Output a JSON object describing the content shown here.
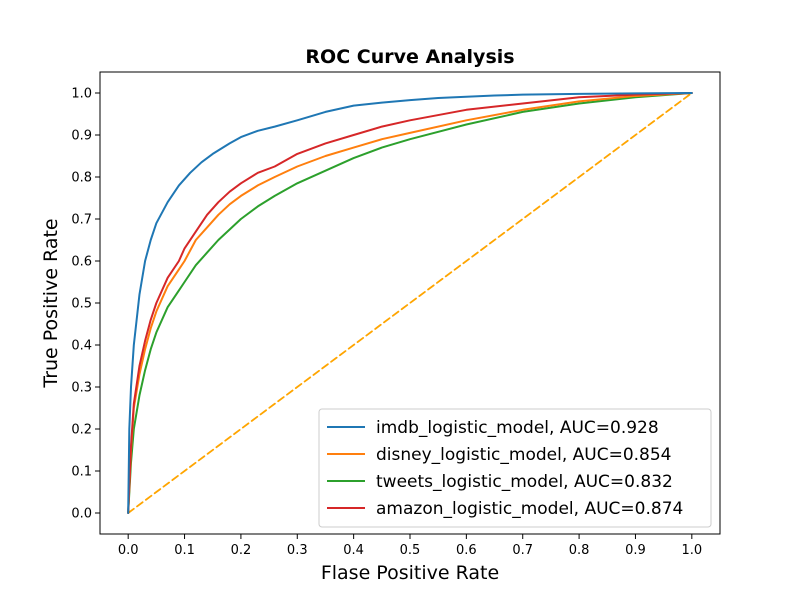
{
  "chart_data": {
    "type": "line",
    "title": "ROC Curve Analysis",
    "xlabel": "Flase Positive Rate",
    "ylabel": "True Positive Rate",
    "xlim": [
      -0.05,
      1.05
    ],
    "ylim": [
      -0.05,
      1.05
    ],
    "xticks": [
      "0.0",
      "0.1",
      "0.2",
      "0.3",
      "0.4",
      "0.5",
      "0.6",
      "0.7",
      "0.8",
      "0.9",
      "1.0"
    ],
    "yticks": [
      "0.0",
      "0.1",
      "0.2",
      "0.3",
      "0.4",
      "0.5",
      "0.6",
      "0.7",
      "0.8",
      "0.9",
      "1.0"
    ],
    "grid": false,
    "legend_position": "lower-right",
    "series": [
      {
        "name": "imdb_logistic_model, AUC=0.928",
        "color": "#1f77b4",
        "x": [
          0,
          0.002,
          0.005,
          0.01,
          0.015,
          0.02,
          0.03,
          0.04,
          0.05,
          0.07,
          0.09,
          0.11,
          0.13,
          0.15,
          0.18,
          0.2,
          0.23,
          0.26,
          0.3,
          0.35,
          0.4,
          0.45,
          0.5,
          0.55,
          0.6,
          0.65,
          0.7,
          0.8,
          0.9,
          1.0
        ],
        "y": [
          0,
          0.2,
          0.3,
          0.4,
          0.46,
          0.52,
          0.6,
          0.65,
          0.69,
          0.74,
          0.78,
          0.81,
          0.835,
          0.855,
          0.88,
          0.895,
          0.91,
          0.92,
          0.935,
          0.955,
          0.97,
          0.977,
          0.983,
          0.988,
          0.991,
          0.994,
          0.996,
          0.998,
          0.999,
          1.0
        ]
      },
      {
        "name": "disney_logistic_model, AUC=0.854",
        "color": "#ff7f0e",
        "x": [
          0,
          0.005,
          0.01,
          0.02,
          0.03,
          0.04,
          0.05,
          0.07,
          0.09,
          0.1,
          0.12,
          0.14,
          0.16,
          0.18,
          0.2,
          0.23,
          0.26,
          0.3,
          0.35,
          0.4,
          0.45,
          0.5,
          0.6,
          0.7,
          0.8,
          0.9,
          1.0
        ],
        "y": [
          0,
          0.15,
          0.25,
          0.33,
          0.39,
          0.44,
          0.48,
          0.54,
          0.58,
          0.6,
          0.65,
          0.68,
          0.71,
          0.735,
          0.755,
          0.78,
          0.8,
          0.825,
          0.85,
          0.87,
          0.89,
          0.905,
          0.935,
          0.96,
          0.98,
          0.993,
          1.0
        ]
      },
      {
        "name": "tweets_logistic_model, AUC=0.832",
        "color": "#2ca02c",
        "x": [
          0,
          0.005,
          0.01,
          0.02,
          0.03,
          0.04,
          0.05,
          0.07,
          0.09,
          0.1,
          0.12,
          0.14,
          0.16,
          0.18,
          0.2,
          0.23,
          0.26,
          0.3,
          0.35,
          0.4,
          0.45,
          0.5,
          0.6,
          0.7,
          0.8,
          0.9,
          1.0
        ],
        "y": [
          0,
          0.12,
          0.2,
          0.28,
          0.34,
          0.39,
          0.43,
          0.49,
          0.53,
          0.55,
          0.59,
          0.62,
          0.65,
          0.675,
          0.7,
          0.73,
          0.755,
          0.785,
          0.815,
          0.845,
          0.87,
          0.89,
          0.925,
          0.955,
          0.975,
          0.99,
          1.0
        ]
      },
      {
        "name": "amazon_logistic_model, AUC=0.874",
        "color": "#d62728",
        "x": [
          0,
          0.005,
          0.01,
          0.02,
          0.03,
          0.04,
          0.05,
          0.07,
          0.09,
          0.1,
          0.12,
          0.14,
          0.16,
          0.18,
          0.2,
          0.23,
          0.26,
          0.3,
          0.35,
          0.4,
          0.45,
          0.5,
          0.6,
          0.7,
          0.8,
          0.9,
          1.0
        ],
        "y": [
          0,
          0.16,
          0.26,
          0.35,
          0.41,
          0.46,
          0.5,
          0.56,
          0.6,
          0.63,
          0.67,
          0.71,
          0.74,
          0.765,
          0.785,
          0.81,
          0.825,
          0.855,
          0.88,
          0.9,
          0.92,
          0.935,
          0.96,
          0.975,
          0.99,
          0.996,
          1.0
        ]
      },
      {
        "name": "",
        "color": "#ffa500",
        "dashed": true,
        "x": [
          0,
          1
        ],
        "y": [
          0,
          1
        ]
      }
    ]
  }
}
